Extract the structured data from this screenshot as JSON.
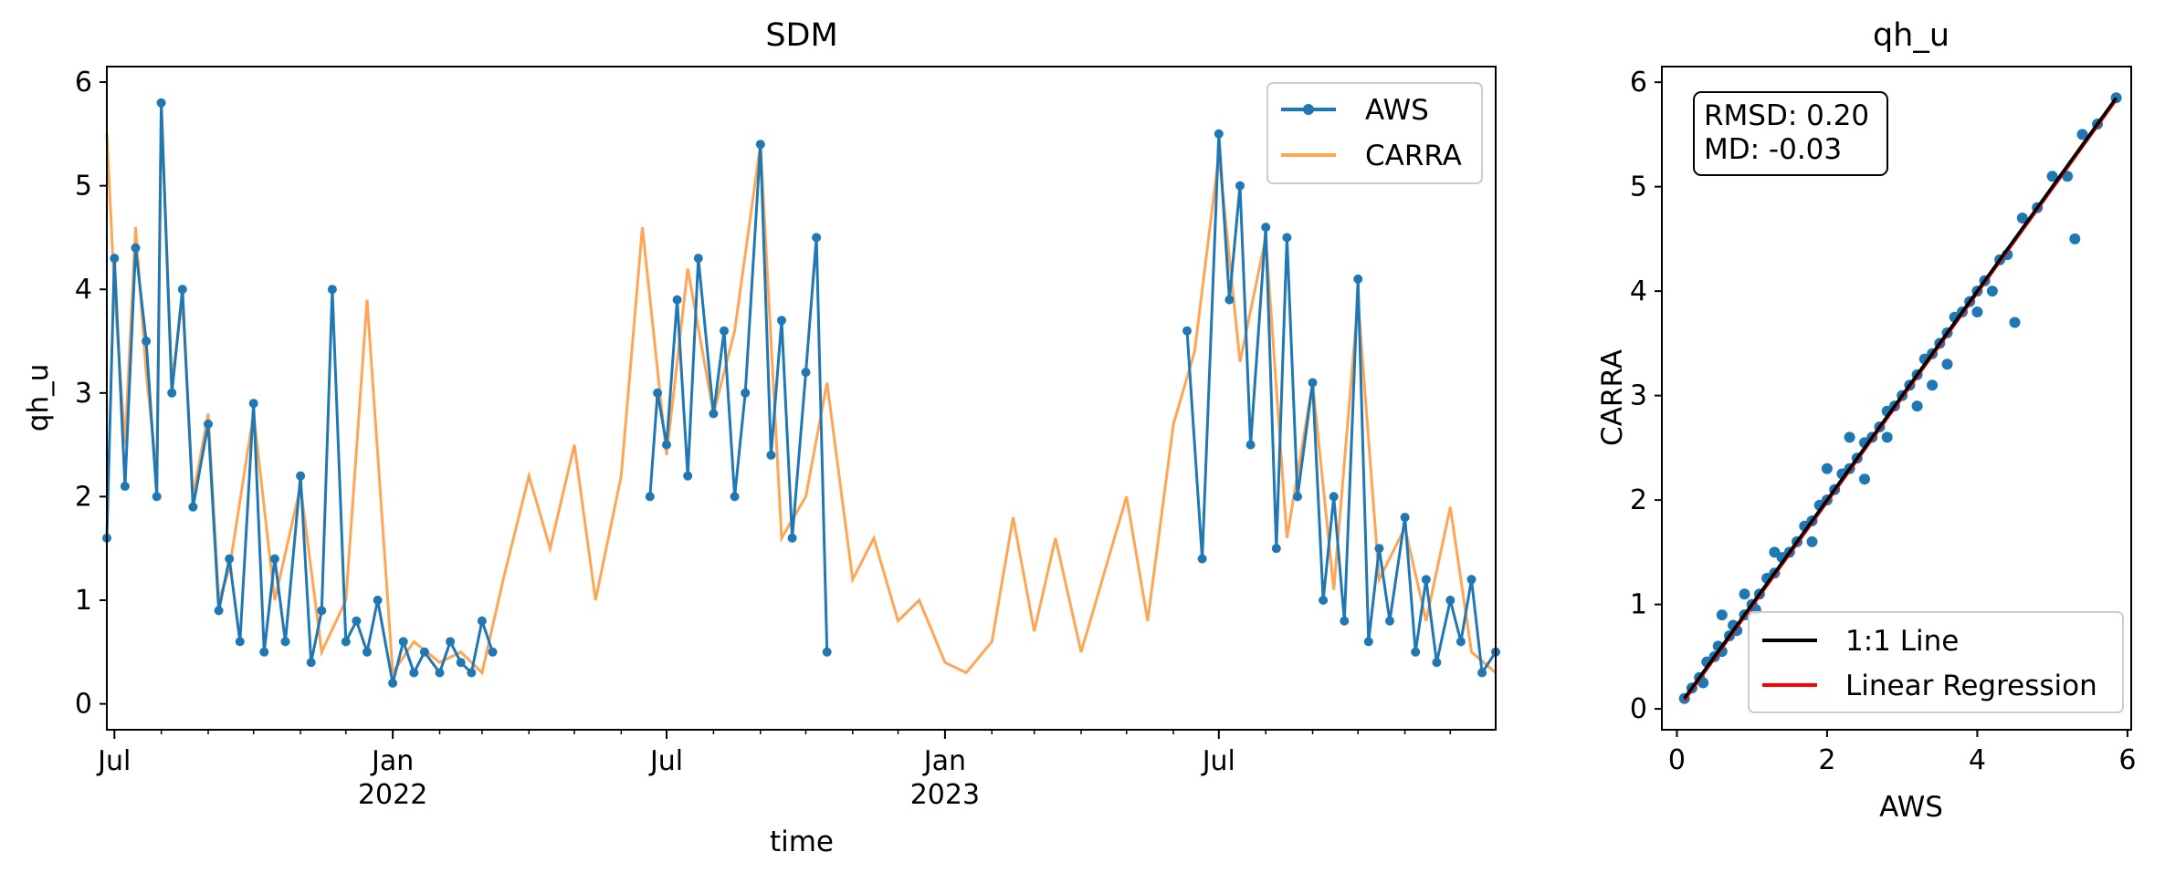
{
  "chart_data": [
    {
      "type": "line",
      "title": "SDM",
      "xlabel": "time",
      "ylabel": "qh_u",
      "ylim": [
        -0.25,
        6.15
      ],
      "xlim": [
        "2021-06-26",
        "2023-12-31"
      ],
      "yticks": [
        0,
        1,
        2,
        3,
        4,
        5,
        6
      ],
      "xticks_major": [
        {
          "date": "2021-07-01",
          "label": "Jul",
          "label2": ""
        },
        {
          "date": "2022-01-01",
          "label": "Jan",
          "label2": "2022"
        },
        {
          "date": "2022-07-01",
          "label": "Jul",
          "label2": ""
        },
        {
          "date": "2023-01-01",
          "label": "Jan",
          "label2": "2023"
        },
        {
          "date": "2023-07-01",
          "label": "Jul",
          "label2": ""
        }
      ],
      "legend": {
        "position": "top-right",
        "entries": [
          "AWS",
          "CARRA"
        ]
      },
      "colors": {
        "AWS": "#1f77b4",
        "CARRA": "#ff7f0e"
      },
      "series": [
        {
          "name": "AWS",
          "x": [
            "2021-06-26",
            "2021-07-01",
            "2021-07-08",
            "2021-07-15",
            "2021-07-22",
            "2021-07-29",
            "2021-08-01",
            "2021-08-08",
            "2021-08-15",
            "2021-08-22",
            "2021-09-01",
            "2021-09-08",
            "2021-09-15",
            "2021-09-22",
            "2021-10-01",
            "2021-10-08",
            "2021-10-15",
            "2021-10-22",
            "2021-11-01",
            "2021-11-08",
            "2021-11-15",
            "2021-11-22",
            "2021-12-01",
            "2021-12-08",
            "2021-12-15",
            "2021-12-22",
            "2022-01-01",
            "2022-01-08",
            "2022-01-15",
            "2022-01-22",
            "2022-02-01",
            "2022-02-08",
            "2022-02-15",
            "2022-02-22",
            "2022-03-01",
            "2022-03-08",
            "2022-07-01",
            "2022-07-08",
            "2022-07-15",
            "2022-07-22",
            "2022-08-01",
            "2022-08-08",
            "2022-08-15",
            "2022-08-22",
            "2022-09-01",
            "2022-09-08",
            "2022-09-15",
            "2022-09-22",
            "2022-10-01",
            "2022-10-08",
            "2022-10-15",
            "2022-06-20",
            "2022-06-25",
            "2023-06-10",
            "2023-06-20",
            "2023-07-01",
            "2023-07-08",
            "2023-07-15",
            "2023-07-22",
            "2023-08-01",
            "2023-08-08",
            "2023-08-15",
            "2023-08-22",
            "2023-09-01",
            "2023-09-08",
            "2023-09-15",
            "2023-09-22",
            "2023-10-01",
            "2023-10-08",
            "2023-10-15",
            "2023-10-22",
            "2023-11-01",
            "2023-11-08",
            "2023-11-15",
            "2023-11-22",
            "2023-12-01",
            "2023-12-08",
            "2023-12-15",
            "2023-12-22",
            "2023-12-31"
          ],
          "values": [
            1.6,
            4.3,
            2.1,
            4.4,
            3.5,
            2.0,
            5.8,
            3.0,
            4.0,
            1.9,
            2.7,
            0.9,
            1.4,
            0.6,
            2.9,
            0.5,
            1.4,
            0.6,
            2.2,
            0.4,
            0.9,
            4.0,
            0.6,
            0.8,
            0.5,
            1.0,
            0.2,
            0.6,
            0.3,
            0.5,
            0.3,
            0.6,
            0.4,
            0.3,
            0.8,
            0.5,
            2.5,
            3.9,
            2.2,
            4.3,
            2.8,
            3.6,
            2.0,
            3.0,
            5.4,
            2.4,
            3.7,
            1.6,
            3.2,
            4.5,
            0.5,
            2.0,
            3.0,
            3.6,
            1.4,
            5.5,
            3.9,
            5.0,
            2.5,
            4.6,
            1.5,
            4.5,
            2.0,
            3.1,
            1.0,
            2.0,
            0.8,
            4.1,
            0.6,
            1.5,
            0.8,
            1.8,
            0.5,
            1.2,
            0.4,
            1.0,
            0.6,
            1.2,
            0.3,
            0.5
          ]
        },
        {
          "name": "CARRA",
          "x": [
            "2021-06-26",
            "2021-07-01",
            "2021-07-08",
            "2021-07-15",
            "2021-07-22",
            "2021-07-29",
            "2021-08-01",
            "2021-08-08",
            "2021-08-15",
            "2021-08-22",
            "2021-09-01",
            "2021-09-08",
            "2021-09-15",
            "2021-10-01",
            "2021-10-15",
            "2021-11-01",
            "2021-11-15",
            "2021-12-01",
            "2021-12-15",
            "2022-01-01",
            "2022-01-15",
            "2022-02-01",
            "2022-02-15",
            "2022-03-01",
            "2022-03-15",
            "2022-04-01",
            "2022-04-15",
            "2022-05-01",
            "2022-05-15",
            "2022-06-01",
            "2022-06-15",
            "2022-07-01",
            "2022-07-15",
            "2022-08-01",
            "2022-08-15",
            "2022-09-01",
            "2022-09-15",
            "2022-10-01",
            "2022-10-15",
            "2022-11-01",
            "2022-11-15",
            "2022-12-01",
            "2022-12-15",
            "2023-01-01",
            "2023-01-15",
            "2023-02-01",
            "2023-02-15",
            "2023-03-01",
            "2023-03-15",
            "2023-04-01",
            "2023-04-15",
            "2023-05-01",
            "2023-05-15",
            "2023-06-01",
            "2023-06-15",
            "2023-07-01",
            "2023-07-15",
            "2023-08-01",
            "2023-08-15",
            "2023-09-01",
            "2023-09-15",
            "2023-10-01",
            "2023-10-15",
            "2023-11-01",
            "2023-11-15",
            "2023-12-01",
            "2023-12-15",
            "2023-12-31"
          ],
          "values": [
            5.5,
            4.0,
            2.5,
            4.6,
            3.2,
            2.2,
            5.8,
            3.1,
            3.9,
            2.0,
            2.8,
            1.0,
            1.3,
            2.8,
            1.0,
            2.1,
            0.5,
            1.0,
            3.9,
            0.3,
            0.6,
            0.4,
            0.5,
            0.3,
            1.2,
            2.2,
            1.5,
            2.5,
            1.0,
            2.2,
            4.6,
            2.4,
            4.2,
            2.8,
            3.6,
            5.4,
            1.6,
            2.0,
            3.1,
            1.2,
            1.6,
            0.8,
            1.0,
            0.4,
            0.3,
            0.6,
            1.8,
            0.7,
            1.6,
            0.5,
            1.2,
            2.0,
            0.8,
            2.7,
            3.4,
            5.3,
            3.3,
            4.5,
            1.6,
            3.1,
            1.1,
            3.9,
            1.2,
            1.7,
            0.8,
            1.9,
            0.5,
            0.3
          ]
        }
      ]
    },
    {
      "type": "scatter",
      "title": "qh_u",
      "xlabel": "AWS",
      "ylabel": "CARRA",
      "xlim": [
        -0.2,
        6.05
      ],
      "ylim": [
        -0.2,
        6.15
      ],
      "xticks": [
        0,
        2,
        4,
        6
      ],
      "yticks": [
        0,
        1,
        2,
        3,
        4,
        5,
        6
      ],
      "annotation": [
        "RMSD: 0.20",
        "MD: -0.03"
      ],
      "legend": {
        "position": "bottom-right",
        "entries": [
          "1:1 Line",
          "Linear Regression"
        ]
      },
      "colors": {
        "points": "#1f77b4",
        "one_to_one": "#000000",
        "regression": "#ff0000"
      },
      "one_to_one": [
        [
          0.1,
          0.1
        ],
        [
          5.85,
          5.85
        ]
      ],
      "regression": [
        [
          0.1,
          0.08
        ],
        [
          5.85,
          5.83
        ]
      ],
      "points": {
        "x": [
          0.1,
          0.2,
          0.3,
          0.35,
          0.4,
          0.5,
          0.55,
          0.6,
          0.7,
          0.75,
          0.8,
          0.9,
          1.0,
          1.05,
          1.1,
          1.2,
          1.3,
          1.4,
          1.5,
          1.6,
          1.7,
          1.8,
          1.9,
          2.0,
          2.1,
          2.2,
          2.3,
          2.4,
          2.5,
          2.6,
          2.7,
          2.8,
          2.9,
          3.0,
          3.1,
          3.2,
          3.3,
          3.4,
          3.5,
          3.6,
          3.7,
          3.8,
          3.9,
          4.0,
          4.1,
          4.3,
          4.4,
          4.6,
          4.8,
          5.0,
          5.2,
          5.4,
          5.6,
          5.85,
          0.6,
          0.9,
          1.3,
          1.8,
          2.3,
          2.5,
          3.2,
          3.6,
          4.2,
          4.5,
          2.0,
          2.8,
          3.4,
          4.0,
          5.3
        ],
        "y": [
          0.1,
          0.2,
          0.3,
          0.25,
          0.45,
          0.5,
          0.6,
          0.55,
          0.7,
          0.8,
          0.75,
          0.9,
          1.0,
          0.95,
          1.1,
          1.25,
          1.3,
          1.45,
          1.5,
          1.6,
          1.75,
          1.8,
          1.95,
          2.0,
          2.1,
          2.25,
          2.3,
          2.4,
          2.55,
          2.6,
          2.7,
          2.85,
          2.9,
          3.0,
          3.1,
          3.2,
          3.35,
          3.4,
          3.5,
          3.6,
          3.75,
          3.8,
          3.9,
          4.0,
          4.1,
          4.3,
          4.35,
          4.7,
          4.8,
          5.1,
          5.1,
          5.5,
          5.6,
          5.85,
          0.9,
          1.1,
          1.5,
          1.6,
          2.6,
          2.2,
          2.9,
          3.3,
          4.0,
          3.7,
          2.3,
          2.6,
          3.1,
          3.8,
          4.5
        ]
      }
    }
  ]
}
